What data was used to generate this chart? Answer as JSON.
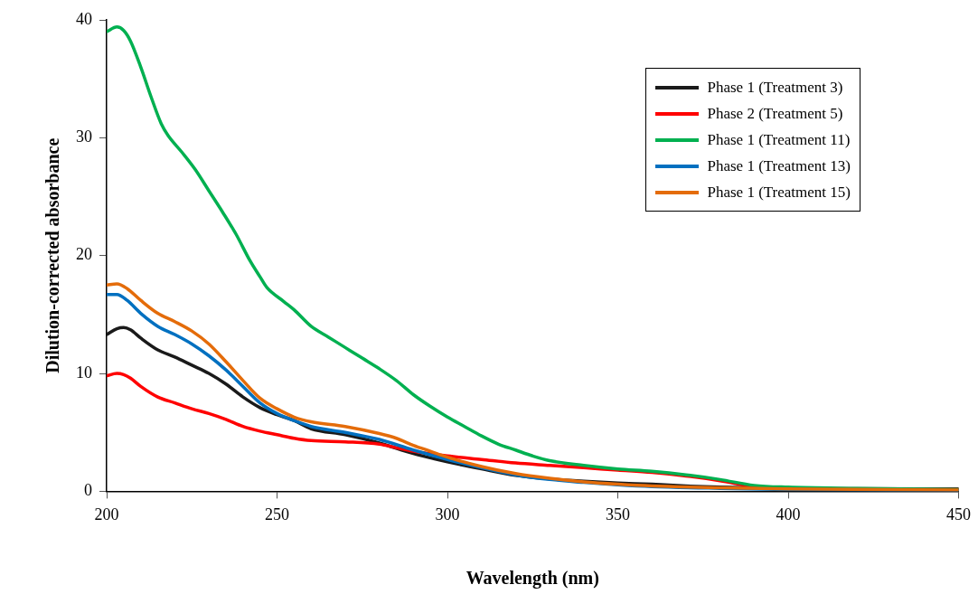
{
  "chart_data": {
    "type": "line",
    "xlabel": "Wavelength (nm)",
    "ylabel": "Dilution-corrected absorbance",
    "xlim": [
      200,
      450
    ],
    "xticks": [
      200,
      250,
      300,
      350,
      400,
      450
    ],
    "ylim": [
      0,
      40
    ],
    "yticks": [
      0,
      10,
      20,
      30,
      40
    ],
    "grid": false,
    "legend": "top right",
    "marker": "none",
    "line_style": "solid",
    "series": [
      {
        "name": "Phase 1 (Treatment 3)",
        "color": "#1a1a1a",
        "x": [
          200,
          203,
          205,
          207,
          210,
          215,
          220,
          225,
          230,
          235,
          240,
          245,
          250,
          255,
          260,
          270,
          280,
          290,
          300,
          310,
          320,
          330,
          340,
          350,
          360,
          370,
          380,
          400,
          450
        ],
        "values": [
          13.3,
          13.8,
          13.9,
          13.7,
          13.0,
          12.0,
          11.4,
          10.7,
          10.0,
          9.1,
          8.0,
          7.1,
          6.5,
          6.0,
          5.3,
          4.8,
          4.1,
          3.2,
          2.5,
          1.9,
          1.35,
          1.05,
          0.85,
          0.7,
          0.6,
          0.45,
          0.35,
          0.25,
          0.2
        ]
      },
      {
        "name": "Phase 2 (Treatment 5)",
        "color": "#ff0000",
        "x": [
          200,
          203,
          205,
          207,
          210,
          215,
          220,
          225,
          230,
          235,
          240,
          245,
          250,
          255,
          260,
          270,
          280,
          285,
          290,
          300,
          310,
          320,
          330,
          340,
          350,
          360,
          370,
          380,
          390,
          400,
          450
        ],
        "values": [
          9.8,
          10.0,
          9.9,
          9.6,
          8.9,
          8.0,
          7.5,
          7.0,
          6.6,
          6.1,
          5.5,
          5.1,
          4.8,
          4.5,
          4.3,
          4.2,
          4.0,
          3.7,
          3.4,
          3.0,
          2.7,
          2.4,
          2.2,
          2.0,
          1.8,
          1.6,
          1.3,
          0.9,
          0.4,
          0.25,
          0.15
        ]
      },
      {
        "name": "Phase 1 (Treatment 11)",
        "color": "#00b050",
        "x": [
          200,
          203,
          205,
          207,
          210,
          213,
          216,
          218,
          222,
          226,
          230,
          234,
          238,
          242,
          245,
          247,
          252,
          255,
          260,
          265,
          270,
          275,
          280,
          285,
          290,
          295,
          300,
          305,
          310,
          315,
          320,
          325,
          330,
          340,
          350,
          360,
          370,
          380,
          390,
          400,
          420,
          450
        ],
        "values": [
          39.0,
          39.4,
          39.1,
          38.2,
          36.0,
          33.5,
          31.2,
          30.2,
          28.8,
          27.3,
          25.5,
          23.7,
          21.8,
          19.6,
          18.2,
          17.3,
          16.1,
          15.4,
          14.0,
          13.1,
          12.2,
          11.3,
          10.4,
          9.4,
          8.2,
          7.2,
          6.3,
          5.5,
          4.7,
          4.0,
          3.5,
          3.0,
          2.6,
          2.2,
          1.9,
          1.7,
          1.4,
          1.0,
          0.5,
          0.35,
          0.25,
          0.15
        ]
      },
      {
        "name": "Phase 1 (Treatment 13)",
        "color": "#0070c0",
        "x": [
          200,
          203,
          206,
          210,
          215,
          220,
          225,
          230,
          235,
          240,
          245,
          250,
          255,
          260,
          270,
          280,
          290,
          300,
          310,
          320,
          330,
          340,
          350,
          360,
          380,
          400,
          450
        ],
        "values": [
          16.7,
          16.7,
          16.2,
          15.1,
          14.0,
          13.3,
          12.5,
          11.5,
          10.3,
          8.9,
          7.5,
          6.6,
          6.0,
          5.5,
          5.0,
          4.4,
          3.5,
          2.7,
          2.0,
          1.4,
          1.0,
          0.75,
          0.55,
          0.4,
          0.25,
          0.15,
          0.05
        ]
      },
      {
        "name": "Phase 1 (Treatment 15)",
        "color": "#e46c0a",
        "x": [
          200,
          203,
          206,
          210,
          215,
          220,
          225,
          230,
          235,
          240,
          245,
          250,
          255,
          260,
          270,
          280,
          285,
          290,
          295,
          300,
          310,
          320,
          330,
          340,
          350,
          360,
          380,
          400,
          450
        ],
        "values": [
          17.5,
          17.6,
          17.2,
          16.2,
          15.1,
          14.4,
          13.6,
          12.5,
          11.0,
          9.4,
          7.9,
          7.0,
          6.3,
          5.9,
          5.5,
          4.9,
          4.5,
          3.9,
          3.4,
          2.9,
          2.1,
          1.5,
          1.1,
          0.8,
          0.6,
          0.45,
          0.3,
          0.2,
          0.1
        ]
      }
    ]
  }
}
